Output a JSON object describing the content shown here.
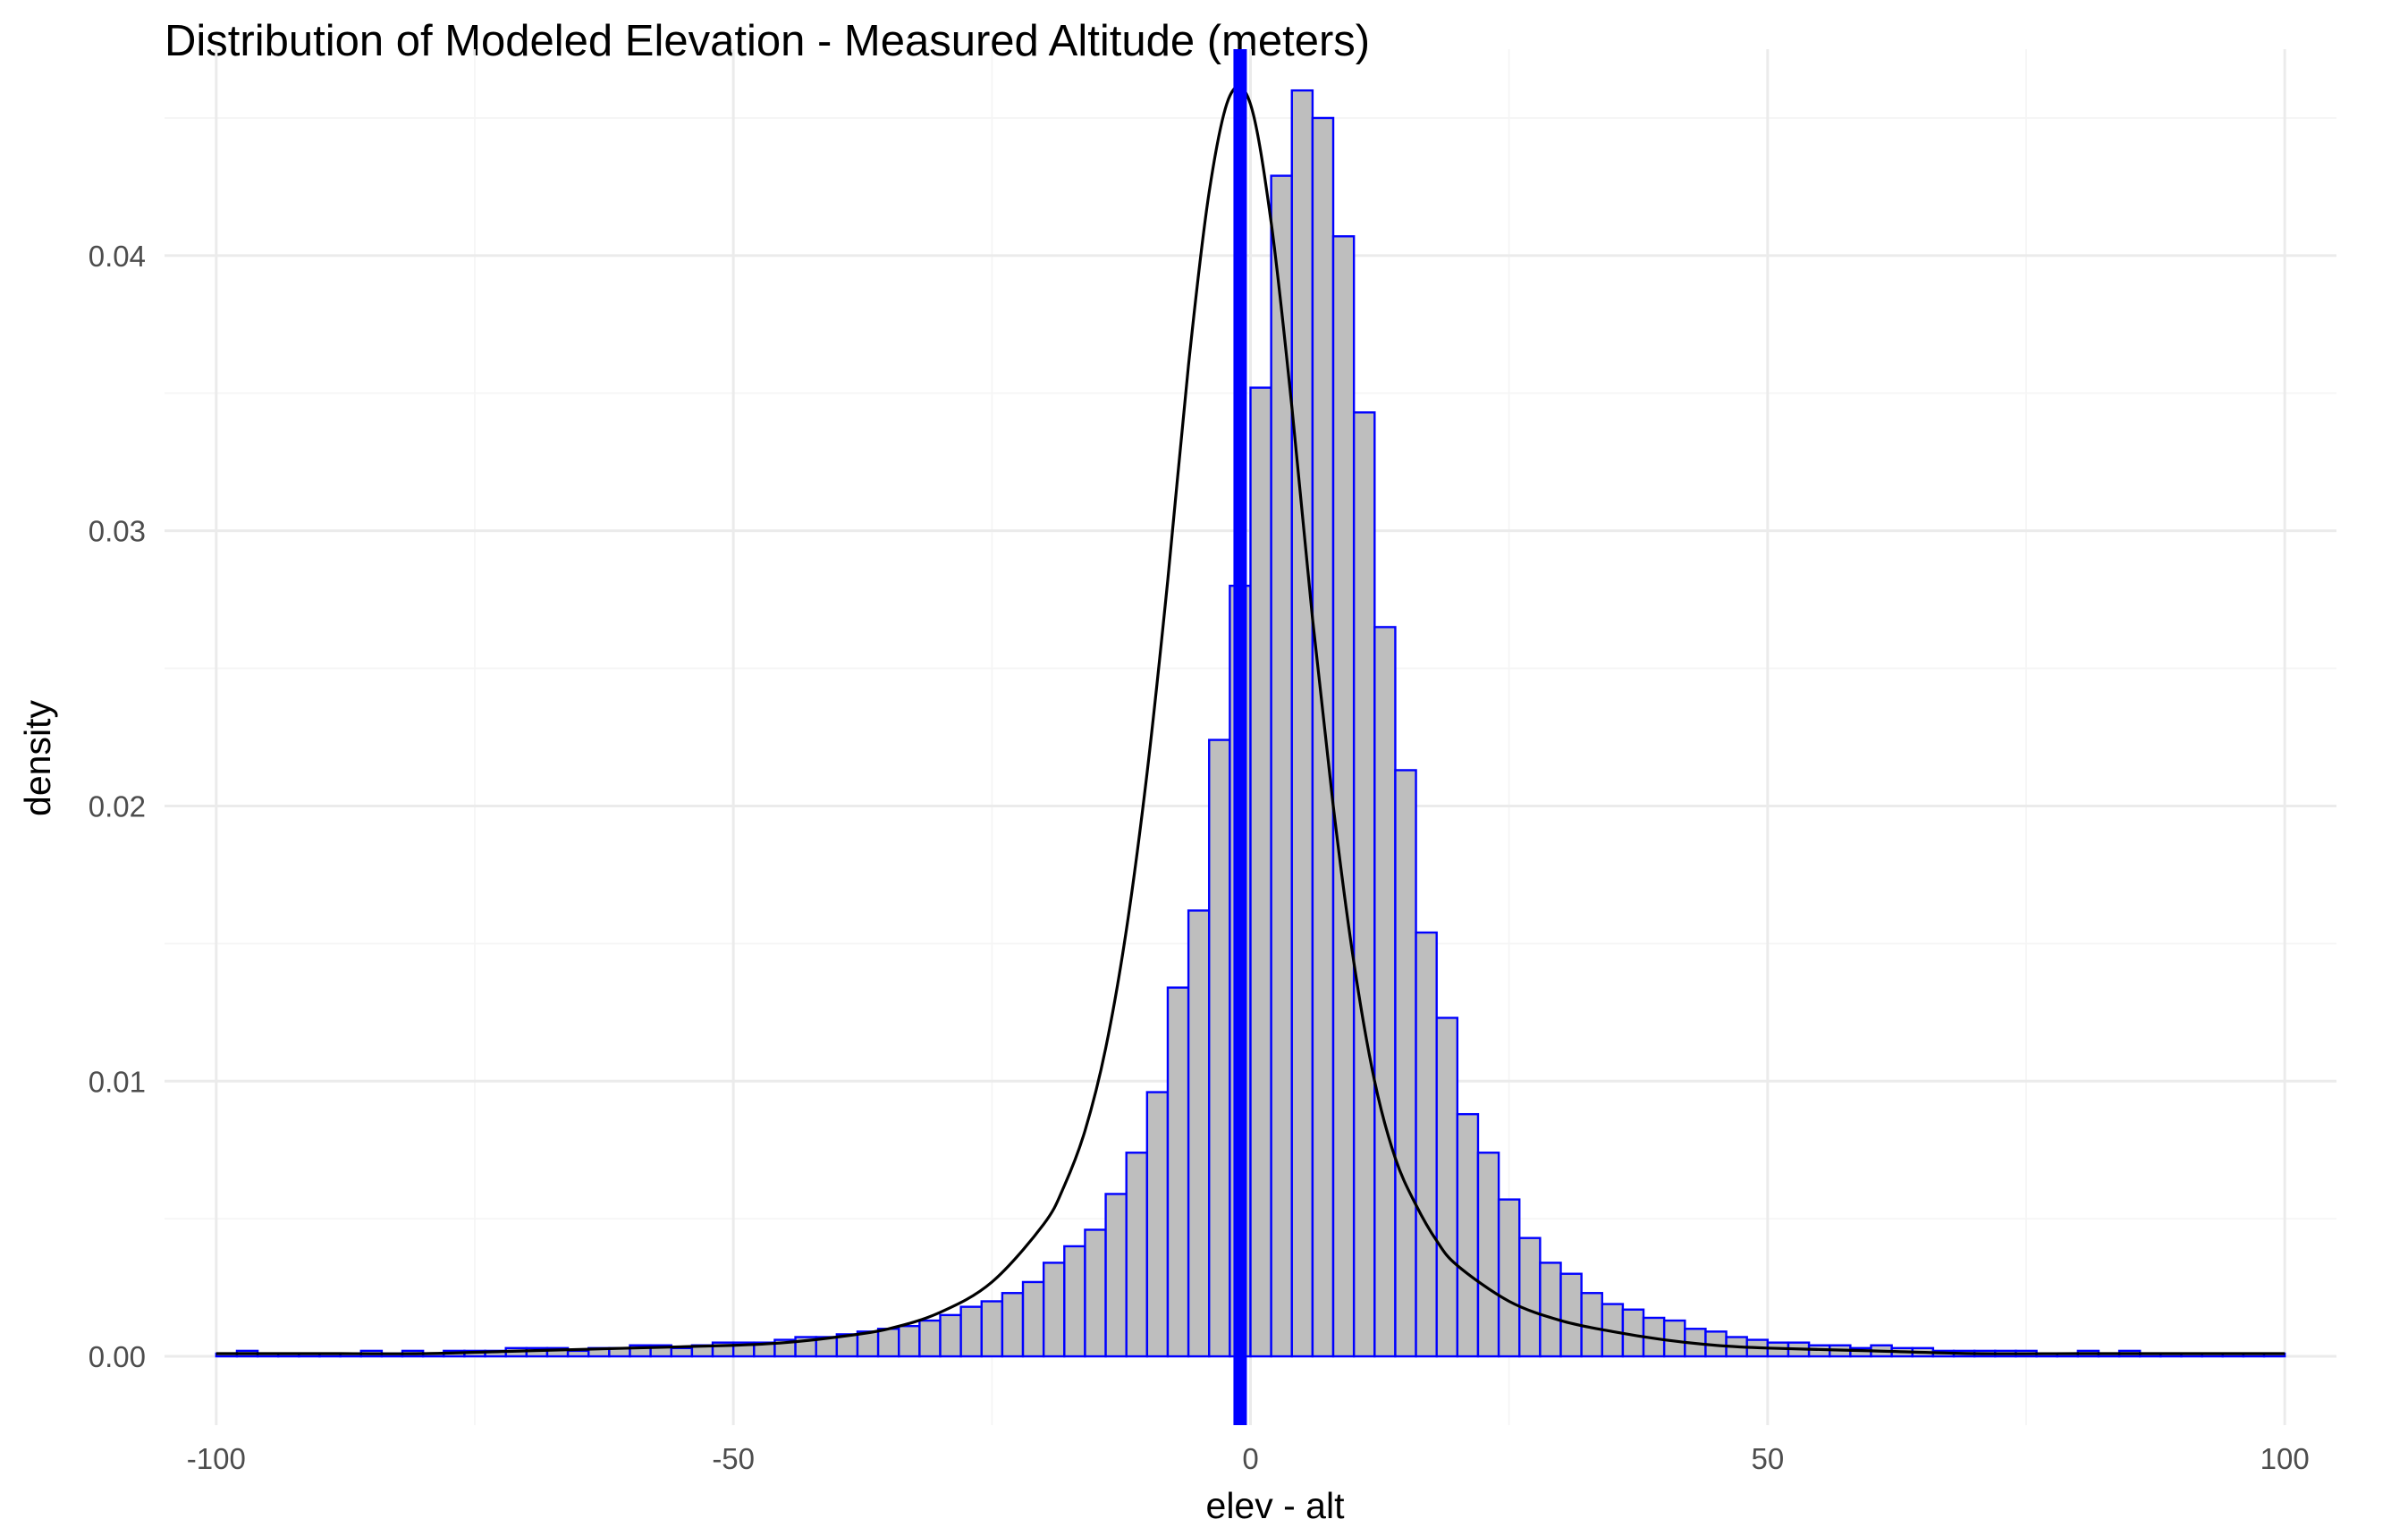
{
  "chart_data": {
    "type": "bar",
    "title": "Distribution of Modeled Elevation - Measured Altitude (meters)",
    "xlabel": "elev - alt",
    "ylabel": "density",
    "xlim": [
      -105,
      105
    ],
    "ylim": [
      -0.0025,
      0.0475
    ],
    "x_ticks": [
      -100,
      -50,
      0,
      50,
      100
    ],
    "x_tick_labels": [
      "-100",
      "-50",
      "0",
      "50",
      "100"
    ],
    "y_ticks": [
      0,
      0.01,
      0.02,
      0.03,
      0.04
    ],
    "y_tick_labels": [
      "0.00",
      "0.01",
      "0.02",
      "0.03",
      "0.04"
    ],
    "grid": true,
    "bin_width": 2,
    "bins_start": -100,
    "histogram_density": [
      0.0001,
      0.0002,
      0.0001,
      0.0001,
      0.0001,
      0.0001,
      0.0001,
      0.0002,
      0.0001,
      0.0002,
      0.0001,
      0.0002,
      0.0002,
      0.0002,
      0.0003,
      0.0003,
      0.0003,
      0.0002,
      0.0003,
      0.0003,
      0.0004,
      0.0004,
      0.0003,
      0.0004,
      0.0005,
      0.0005,
      0.0005,
      0.0006,
      0.0007,
      0.0007,
      0.0008,
      0.0009,
      0.001,
      0.0011,
      0.0013,
      0.0015,
      0.0018,
      0.002,
      0.0023,
      0.0027,
      0.0034,
      0.004,
      0.0046,
      0.0059,
      0.0074,
      0.0096,
      0.0134,
      0.0162,
      0.0224,
      0.028,
      0.0352,
      0.0429,
      0.046,
      0.045,
      0.0407,
      0.0343,
      0.0265,
      0.0213,
      0.0154,
      0.0123,
      0.0088,
      0.0074,
      0.0057,
      0.0043,
      0.0034,
      0.003,
      0.0023,
      0.0019,
      0.0017,
      0.0014,
      0.0013,
      0.001,
      0.0009,
      0.0007,
      0.0006,
      0.0005,
      0.0005,
      0.0004,
      0.0004,
      0.0003,
      0.0004,
      0.0003,
      0.0003,
      0.0002,
      0.0002,
      0.0002,
      0.0002,
      0.0002,
      0.0001,
      0.0001,
      0.0002,
      0.0001,
      0.0002,
      0.0001,
      0.0001,
      0.0001,
      0.0001,
      0.0001,
      0.0001,
      0.0001
    ],
    "density_curve": {
      "x": [
        -100,
        -90,
        -80,
        -70,
        -60,
        -50,
        -45,
        -40,
        -35,
        -30,
        -25,
        -20,
        -18,
        -16,
        -14,
        -12,
        -10,
        -8,
        -6,
        -4,
        -2,
        0,
        2,
        4,
        6,
        8,
        10,
        12,
        14,
        16,
        18,
        20,
        25,
        30,
        35,
        40,
        45,
        50,
        60,
        70,
        80,
        90,
        100
      ],
      "y": [
        0.0001,
        0.0001,
        0.0001,
        0.0002,
        0.0003,
        0.0004,
        0.0005,
        0.0007,
        0.001,
        0.0016,
        0.0027,
        0.0048,
        0.0062,
        0.0082,
        0.0112,
        0.0155,
        0.0212,
        0.0282,
        0.036,
        0.0423,
        0.0458,
        0.0455,
        0.0412,
        0.0345,
        0.0268,
        0.02,
        0.0143,
        0.01,
        0.0072,
        0.0055,
        0.0042,
        0.0033,
        0.002,
        0.0013,
        0.0009,
        0.0006,
        0.0004,
        0.0003,
        0.0002,
        0.0001,
        0.0001,
        0.0001,
        0.0001
      ]
    },
    "vline": {
      "x": -1,
      "color": "#0000ff"
    },
    "colors": {
      "bar_fill": "#bebebe",
      "bar_stroke": "#0000ff",
      "curve": "#000000",
      "grid_major": "#ebebeb",
      "grid_minor": "#f5f5f5",
      "tick_label": "#4d4d4d"
    }
  }
}
